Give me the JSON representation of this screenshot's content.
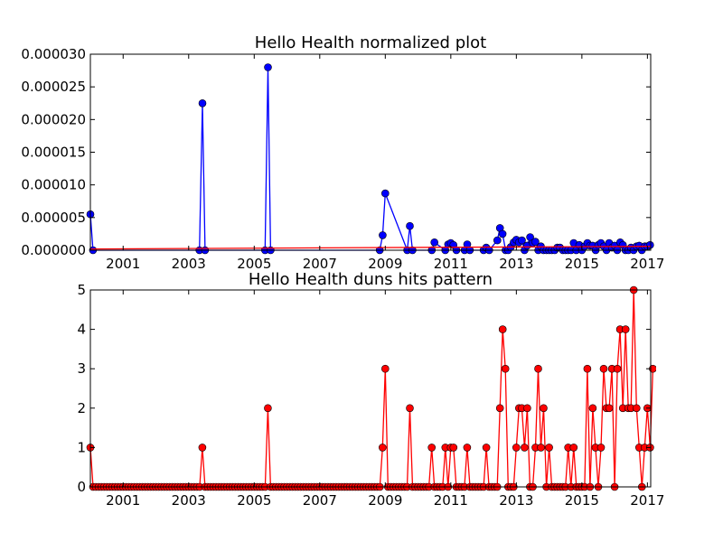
{
  "colors": {
    "blue": "#0000ff",
    "red": "#ff0000",
    "axis": "#000000",
    "background": "#ffffff"
  },
  "chart_data": [
    {
      "type": "line",
      "title": "Hello Health normalized plot",
      "xlabel": "",
      "ylabel": "",
      "xlim": [
        2000.0,
        2017.1
      ],
      "ylim": [
        0,
        3e-05
      ],
      "grid": false,
      "xticks": [
        2001,
        2003,
        2005,
        2007,
        2009,
        2011,
        2013,
        2015,
        2017
      ],
      "xtick_labels": [
        "2001",
        "2003",
        "2005",
        "2007",
        "2009",
        "2011",
        "2013",
        "2015",
        "2017"
      ],
      "yticks": [
        0,
        5e-06,
        1e-05,
        1.5e-05,
        2e-05,
        2.5e-05,
        3e-05
      ],
      "ytick_labels": [
        "0.000000",
        "0.000005",
        "0.000010",
        "0.000015",
        "0.000020",
        "0.000025",
        "0.000030"
      ],
      "series": [
        {
          "color": "#0000ff",
          "marker": "circle",
          "x": [
            2000.0,
            2000.08,
            2003.33,
            2003.42,
            2003.5,
            2005.33,
            2005.42,
            2005.5,
            2008.83,
            2008.92,
            2009.0,
            2009.67,
            2009.75,
            2009.83,
            2010.42,
            2010.5,
            2010.83,
            2010.92,
            2011.0,
            2011.08,
            2011.17,
            2011.42,
            2011.5,
            2011.58,
            2012.0,
            2012.08,
            2012.17,
            2012.42,
            2012.5,
            2012.58,
            2012.67,
            2012.75,
            2012.83,
            2012.92,
            2013.0,
            2013.08,
            2013.17,
            2013.25,
            2013.33,
            2013.42,
            2013.5,
            2013.58,
            2013.67,
            2013.75,
            2013.83,
            2013.92,
            2014.0,
            2014.08,
            2014.17,
            2014.25,
            2014.33,
            2014.42,
            2014.5,
            2014.58,
            2014.67,
            2014.75,
            2014.83,
            2014.92,
            2015.0,
            2015.08,
            2015.17,
            2015.25,
            2015.33,
            2015.42,
            2015.5,
            2015.58,
            2015.67,
            2015.75,
            2015.83,
            2015.92,
            2016.0,
            2016.08,
            2016.17,
            2016.25,
            2016.33,
            2016.42,
            2016.5,
            2016.58,
            2016.67,
            2016.75,
            2016.83,
            2016.92,
            2017.0,
            2017.08
          ],
          "y": [
            5.5e-06,
            0,
            0,
            2.25e-05,
            0,
            0,
            2.8e-05,
            0,
            0,
            2.3e-06,
            8.7e-06,
            0,
            3.7e-06,
            0,
            0,
            1.2e-06,
            0,
            9e-07,
            1.1e-06,
            8e-07,
            0,
            0,
            9e-07,
            0,
            0,
            4e-07,
            0,
            1.5e-06,
            3.4e-06,
            2.5e-06,
            0,
            0,
            5e-07,
            1.2e-06,
            1.6e-06,
            1.2e-06,
            1.5e-06,
            0,
            7e-07,
            2e-06,
            1.1e-06,
            1.3e-06,
            0,
            6e-07,
            0,
            0,
            0,
            0,
            0,
            4e-07,
            4e-07,
            0,
            0,
            0,
            0,
            1.1e-06,
            0,
            8e-07,
            0,
            6e-07,
            1.1e-06,
            7e-07,
            7e-07,
            0,
            8e-07,
            1.1e-06,
            6e-07,
            0,
            1.1e-06,
            4e-07,
            7e-07,
            0,
            1.2e-06,
            8e-07,
            0,
            0,
            4e-07,
            0,
            6e-07,
            7e-07,
            0,
            6e-07,
            6e-07,
            8e-07
          ]
        },
        {
          "color": "#ff0000",
          "marker": "none",
          "x": [
            2000.0,
            2017.1
          ],
          "y": [
            2e-07,
            6e-07
          ]
        }
      ]
    },
    {
      "type": "line",
      "title": "Hello Health duns hits pattern",
      "xlabel": "",
      "ylabel": "",
      "xlim": [
        2000.0,
        2017.1
      ],
      "ylim": [
        0,
        5
      ],
      "grid": false,
      "xticks": [
        2001,
        2003,
        2005,
        2007,
        2009,
        2011,
        2013,
        2015,
        2017
      ],
      "xtick_labels": [
        "2001",
        "2003",
        "2005",
        "2007",
        "2009",
        "2011",
        "2013",
        "2015",
        "2017"
      ],
      "yticks": [
        0,
        1,
        2,
        3,
        4,
        5
      ],
      "ytick_labels": [
        "0",
        "1",
        "2",
        "3",
        "4",
        "5"
      ],
      "series": [
        {
          "color": "#ff0000",
          "marker": "circle",
          "monthly_start": 2000.0,
          "monthly_step": 0.08333,
          "y": [
            1,
            0,
            0,
            0,
            0,
            0,
            0,
            0,
            0,
            0,
            0,
            0,
            0,
            0,
            0,
            0,
            0,
            0,
            0,
            0,
            0,
            0,
            0,
            0,
            0,
            0,
            0,
            0,
            0,
            0,
            0,
            0,
            0,
            0,
            0,
            0,
            0,
            0,
            0,
            0,
            0,
            1,
            0,
            0,
            0,
            0,
            0,
            0,
            0,
            0,
            0,
            0,
            0,
            0,
            0,
            0,
            0,
            0,
            0,
            0,
            0,
            0,
            0,
            0,
            0,
            2,
            0,
            0,
            0,
            0,
            0,
            0,
            0,
            0,
            0,
            0,
            0,
            0,
            0,
            0,
            0,
            0,
            0,
            0,
            0,
            0,
            0,
            0,
            0,
            0,
            0,
            0,
            0,
            0,
            0,
            0,
            0,
            0,
            0,
            0,
            0,
            0,
            0,
            0,
            0,
            0,
            0,
            1,
            3,
            0,
            0,
            0,
            0,
            0,
            0,
            0,
            0,
            2,
            0,
            0,
            0,
            0,
            0,
            0,
            0,
            1,
            0,
            0,
            0,
            0,
            1,
            0,
            1,
            1,
            0,
            0,
            0,
            0,
            1,
            0,
            0,
            0,
            0,
            0,
            0,
            1,
            0,
            0,
            0,
            0,
            2,
            4,
            3,
            0,
            0,
            0,
            1,
            2,
            2,
            1,
            2,
            0,
            0,
            1,
            3,
            1,
            2,
            0,
            1,
            0,
            0,
            0,
            0,
            0,
            0,
            1,
            0,
            1,
            0,
            0,
            0,
            0,
            3,
            0,
            2,
            1,
            0,
            1,
            3,
            2,
            2,
            3,
            0,
            3,
            4,
            2,
            4,
            2,
            2,
            5,
            2,
            1,
            0,
            1,
            2,
            1,
            3
          ]
        }
      ]
    }
  ]
}
